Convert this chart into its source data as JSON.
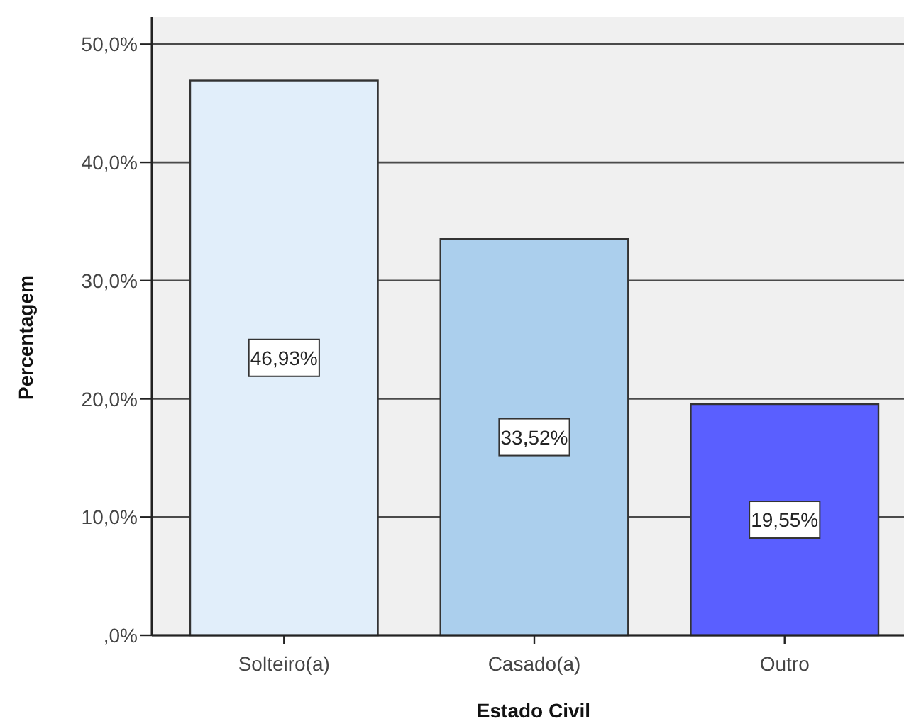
{
  "chart_data": {
    "type": "bar",
    "xlabel": "Estado Civil",
    "ylabel": "Percentagem",
    "categories": [
      "Solteiro(a)",
      "Casado(a)",
      "Outro"
    ],
    "values": [
      46.93,
      33.52,
      19.55
    ],
    "colors": [
      "#e1eefa",
      "#abcfed",
      "#5a5fff"
    ],
    "value_labels": [
      "46,93%",
      "33,52%",
      "19,55%"
    ],
    "ylim": [
      0,
      52.3
    ],
    "yticks": [
      {
        "value": 0,
        "label": ",0%"
      },
      {
        "value": 10,
        "label": "10,0%"
      },
      {
        "value": 20,
        "label": "20,0%"
      },
      {
        "value": 30,
        "label": "30,0%"
      },
      {
        "value": 40,
        "label": "40,0%"
      },
      {
        "value": 50,
        "label": "50,0%"
      }
    ],
    "grid": "y"
  }
}
